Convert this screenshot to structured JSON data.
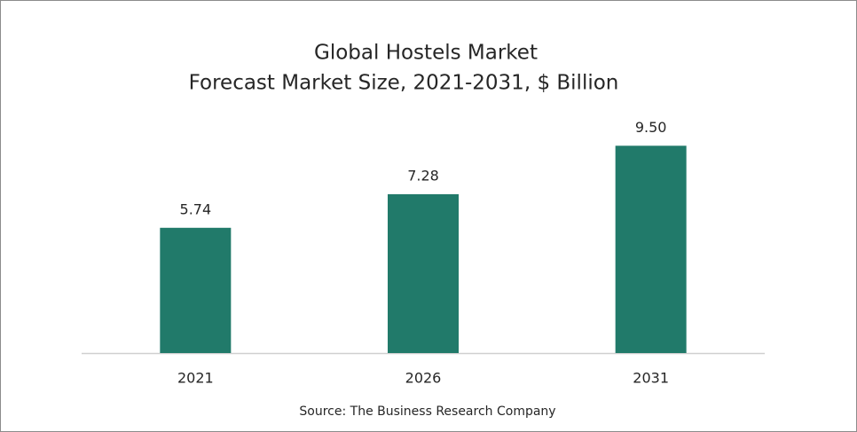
{
  "chart_data": {
    "type": "bar",
    "title": "Global Hostels Market",
    "subtitle": "Forecast Market Size, 2021-2031, $ Billion",
    "categories": [
      "2021",
      "2026",
      "2031"
    ],
    "values": [
      5.74,
      7.28,
      9.5
    ],
    "value_labels": [
      "5.74",
      "7.28",
      "9.50"
    ],
    "color": "#217a6a",
    "source": "Source: The Business Research Company"
  }
}
